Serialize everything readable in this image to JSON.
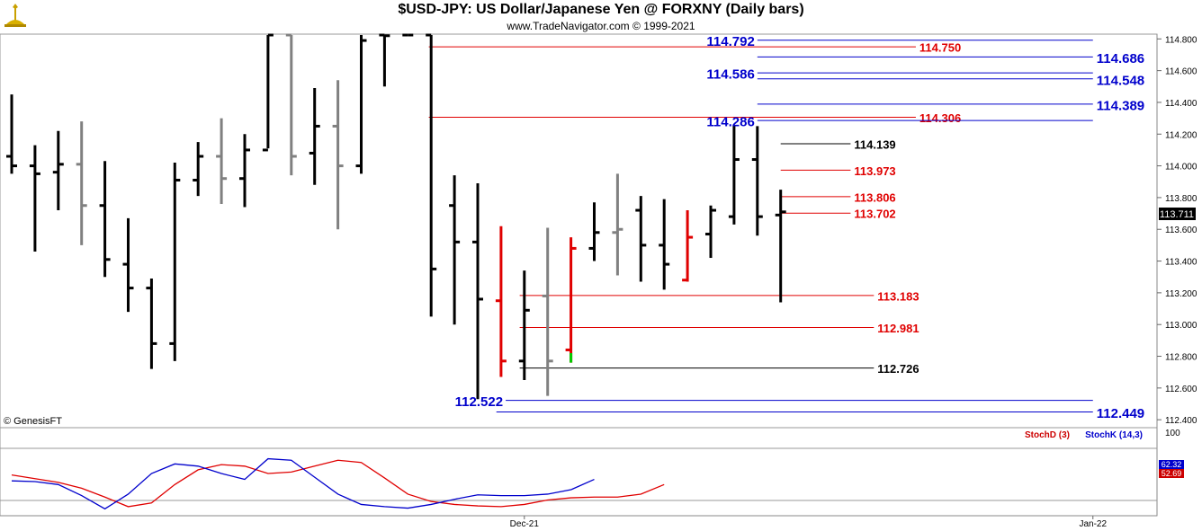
{
  "header": {
    "title": "$USD-JPY:  US Dollar/Japanese Yen @ FORXNY  (Daily bars)",
    "subtitle": "www.TradeNavigator.com © 1999-2021",
    "logo_icon": "trade-navigator-logo-icon"
  },
  "colors": {
    "bar_black": "#000000",
    "bar_gray": "#808080",
    "bar_red": "#e00000",
    "bar_green": "#00cc00",
    "level_blue": "#0000cc",
    "level_red": "#e00000",
    "stoch_k": "#0000cc",
    "stoch_d": "#cc0000"
  },
  "price_panel": {
    "watermark": "© GenesisFT",
    "current_price": "113.711"
  },
  "stoch_panel": {
    "legend_d": "StochD (3)",
    "legend_k": "StochK (14,3)",
    "scale_top": "100",
    "last_k": "62.32",
    "last_d": "52.69"
  },
  "chart_data": [
    {
      "type": "ohlc",
      "title": "$USD-JPY:  US Dollar/Japanese Yen @ FORXNY  (Daily bars)",
      "y_ticks": [
        "114.800",
        "114.600",
        "114.400",
        "114.200",
        "114.000",
        "113.800",
        "113.600",
        "113.400",
        "113.200",
        "113.000",
        "112.800",
        "112.600",
        "112.400"
      ],
      "ylim": [
        112.35,
        114.83
      ],
      "x_ticks": [
        {
          "label": "Dec-21",
          "index": 22
        },
        {
          "label": "Jan-22",
          "index": 46.4
        }
      ],
      "bars": [
        {
          "h": 114.45,
          "l": 113.95,
          "o": 114.06,
          "c": 114.0,
          "color": "black"
        },
        {
          "h": 114.13,
          "l": 113.46,
          "o": 114.0,
          "c": 113.95,
          "color": "black"
        },
        {
          "h": 114.22,
          "l": 113.72,
          "o": 113.96,
          "c": 114.01,
          "color": "black"
        },
        {
          "h": 114.28,
          "l": 113.5,
          "o": 114.01,
          "c": 113.75,
          "color": "gray"
        },
        {
          "h": 114.03,
          "l": 113.3,
          "o": 113.75,
          "c": 113.41,
          "color": "black"
        },
        {
          "h": 113.67,
          "l": 113.08,
          "o": 113.38,
          "c": 113.23,
          "color": "black"
        },
        {
          "h": 113.29,
          "l": 112.72,
          "o": 113.23,
          "c": 112.88,
          "color": "black"
        },
        {
          "h": 114.02,
          "l": 112.77,
          "o": 112.88,
          "c": 113.91,
          "color": "black"
        },
        {
          "h": 114.15,
          "l": 113.81,
          "o": 113.91,
          "c": 114.06,
          "color": "black"
        },
        {
          "h": 114.3,
          "l": 113.76,
          "o": 114.06,
          "c": 113.92,
          "color": "gray"
        },
        {
          "h": 114.2,
          "l": 113.74,
          "o": 113.92,
          "c": 114.1,
          "color": "black"
        },
        {
          "h": 114.83,
          "l": 114.11,
          "o": 114.1,
          "c": 114.83,
          "color": "black"
        },
        {
          "h": 114.83,
          "l": 113.94,
          "o": 114.83,
          "c": 114.06,
          "color": "gray"
        },
        {
          "h": 114.49,
          "l": 113.88,
          "o": 114.08,
          "c": 114.25,
          "color": "black"
        },
        {
          "h": 114.54,
          "l": 113.6,
          "o": 114.25,
          "c": 114.0,
          "color": "gray"
        },
        {
          "h": 114.83,
          "l": 113.95,
          "o": 114.0,
          "c": 114.79,
          "color": "black"
        },
        {
          "h": 114.83,
          "l": 114.5,
          "o": 114.83,
          "c": 114.82,
          "color": "black"
        },
        {
          "h": 114.83,
          "l": 114.83,
          "o": 114.83,
          "c": 114.83,
          "color": "black"
        },
        {
          "h": 114.83,
          "l": 113.05,
          "o": 114.83,
          "c": 113.35,
          "color": "black"
        },
        {
          "h": 113.94,
          "l": 113.0,
          "o": 113.75,
          "c": 113.52,
          "color": "black"
        },
        {
          "h": 113.89,
          "l": 112.53,
          "o": 113.52,
          "c": 113.16,
          "color": "black"
        },
        {
          "h": 113.62,
          "l": 112.67,
          "o": 113.15,
          "c": 112.77,
          "color": "red"
        },
        {
          "h": 113.34,
          "l": 112.65,
          "o": 112.77,
          "c": 113.09,
          "color": "black"
        },
        {
          "h": 113.61,
          "l": 112.55,
          "o": 113.18,
          "c": 112.77,
          "color": "gray"
        },
        {
          "h": 113.55,
          "l": 112.76,
          "o": 112.84,
          "c": 113.48,
          "color": "red",
          "low_color": "green"
        },
        {
          "h": 113.77,
          "l": 113.4,
          "o": 113.48,
          "c": 113.58,
          "color": "black"
        },
        {
          "h": 113.95,
          "l": 113.31,
          "o": 113.58,
          "c": 113.6,
          "color": "gray"
        },
        {
          "h": 113.81,
          "l": 113.27,
          "o": 113.72,
          "c": 113.5,
          "color": "black"
        },
        {
          "h": 113.79,
          "l": 113.22,
          "o": 113.5,
          "c": 113.38,
          "color": "black"
        },
        {
          "h": 113.72,
          "l": 113.27,
          "o": 113.28,
          "c": 113.55,
          "color": "red"
        },
        {
          "h": 113.75,
          "l": 113.42,
          "o": 113.57,
          "c": 113.72,
          "color": "black"
        },
        {
          "h": 114.25,
          "l": 113.63,
          "o": 113.68,
          "c": 114.04,
          "color": "black"
        },
        {
          "h": 114.25,
          "l": 113.56,
          "o": 114.04,
          "c": 113.68,
          "color": "black"
        },
        {
          "h": 113.85,
          "l": 113.14,
          "o": 113.69,
          "c": 113.71,
          "color": "black"
        }
      ],
      "levels": [
        {
          "value": 114.792,
          "label": "114.792",
          "color": "blue",
          "side": "left",
          "from": 32,
          "to": 46.4
        },
        {
          "value": 114.75,
          "label": "114.750",
          "color": "red",
          "side": "right",
          "from": 17.9,
          "to": 38.8
        },
        {
          "value": 114.686,
          "label": "114.686",
          "color": "blue",
          "side": "right",
          "from": 32,
          "to": 46.4
        },
        {
          "value": 114.586,
          "label": "114.586",
          "color": "blue",
          "side": "left",
          "from": 32,
          "to": 46.4
        },
        {
          "value": 114.548,
          "label": "114.548",
          "color": "blue",
          "side": "right",
          "from": 32,
          "to": 46.4
        },
        {
          "value": 114.389,
          "label": "114.389",
          "color": "blue",
          "side": "right",
          "from": 32,
          "to": 46.4
        },
        {
          "value": 114.306,
          "label": "114.306",
          "color": "red",
          "side": "right",
          "from": 17.9,
          "to": 38.8
        },
        {
          "value": 114.286,
          "label": "114.286",
          "color": "blue",
          "side": "left",
          "from": 32,
          "to": 46.4
        },
        {
          "value": 114.139,
          "label": "114.139",
          "color": "black",
          "side": "right",
          "from": 33,
          "to": 36
        },
        {
          "value": 113.973,
          "label": "113.973",
          "color": "red",
          "side": "right",
          "from": 33,
          "to": 36
        },
        {
          "value": 113.806,
          "label": "113.806",
          "color": "red",
          "side": "right",
          "from": 33,
          "to": 36
        },
        {
          "value": 113.702,
          "label": "113.702",
          "color": "red",
          "side": "right",
          "from": 33,
          "to": 36
        },
        {
          "value": 113.183,
          "label": "113.183",
          "color": "red",
          "side": "right",
          "from": 21.8,
          "to": 37
        },
        {
          "value": 112.981,
          "label": "112.981",
          "color": "red",
          "side": "right",
          "from": 21.8,
          "to": 37
        },
        {
          "value": 112.726,
          "label": "112.726",
          "color": "black",
          "side": "right",
          "from": 21.8,
          "to": 37
        },
        {
          "value": 112.522,
          "label": "112.522",
          "color": "blue",
          "side": "left",
          "from": 21.2,
          "to": 46.4
        },
        {
          "value": 112.449,
          "label": "112.449",
          "color": "blue",
          "side": "right",
          "from": 20.8,
          "to": 46.4
        }
      ]
    },
    {
      "type": "line",
      "title": "",
      "ylim": [
        0,
        100
      ],
      "series": [
        {
          "name": "StochD (3)",
          "color": "red",
          "values": [
            48,
            43,
            38,
            30,
            18,
            5,
            10,
            35,
            55,
            62,
            60,
            50,
            52,
            60,
            68,
            65,
            44,
            22,
            12,
            8,
            6,
            5,
            8,
            14,
            17,
            18,
            18,
            22,
            35
          ]
        },
        {
          "name": "StochK (14,3)",
          "color": "blue",
          "values": [
            40,
            39,
            35,
            20,
            2,
            22,
            50,
            63,
            60,
            50,
            42,
            70,
            68,
            45,
            22,
            8,
            5,
            3,
            8,
            15,
            21,
            20,
            20,
            22,
            28,
            42
          ]
        }
      ]
    }
  ]
}
